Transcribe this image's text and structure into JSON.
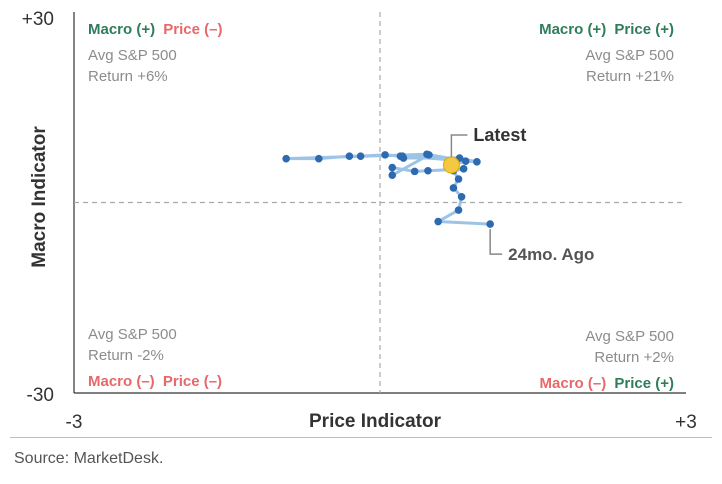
{
  "chart_data": {
    "type": "scatter",
    "xlabel": "Price Indicator",
    "ylabel": "Macro Indicator",
    "xlim": [
      -3,
      3
    ],
    "ylim": [
      -30,
      30
    ],
    "x_tick_labels": [
      "-3",
      "+3"
    ],
    "y_tick_labels": [
      "+30",
      "-30"
    ],
    "series": [
      {
        "points": [
          [
            1.08,
            -3.4
          ],
          [
            0.57,
            -3.0
          ],
          [
            0.77,
            -1.2
          ],
          [
            0.8,
            0.9
          ],
          [
            0.72,
            2.3
          ],
          [
            0.77,
            3.7
          ],
          [
            0.72,
            5.0
          ],
          [
            0.82,
            5.3
          ],
          [
            0.47,
            5.0
          ],
          [
            0.34,
            4.9
          ],
          [
            0.12,
            5.5
          ],
          [
            0.12,
            4.3
          ],
          [
            0.48,
            7.5
          ],
          [
            0.23,
            7.0
          ],
          [
            0.78,
            7.0
          ],
          [
            0.95,
            6.4
          ],
          [
            0.22,
            7.3
          ],
          [
            0.2,
            7.3
          ],
          [
            0.05,
            7.5
          ],
          [
            -0.19,
            7.3
          ],
          [
            -0.3,
            7.3
          ],
          [
            -0.6,
            6.9
          ],
          [
            -0.92,
            6.9
          ],
          [
            0.46,
            7.6
          ],
          [
            0.84,
            6.5
          ],
          [
            0.7,
            5.9
          ]
        ],
        "color": "#2d6ab0",
        "line_color": "#9dc3e6"
      }
    ],
    "latest_point": {
      "x": 0.7,
      "y": 5.9,
      "color": "#f5c842"
    },
    "annotations": [
      {
        "label": "Latest",
        "x": 0.7,
        "y": 5.9
      },
      {
        "label": "24mo. Ago",
        "x": 1.08,
        "y": -3.4
      }
    ],
    "quadrants": {
      "top_left": {
        "macro": "Macro (+)",
        "price": "Price (–)",
        "line1": "Avg S&P 500",
        "line2": "Return +6%"
      },
      "top_right": {
        "macro": "Macro (+)",
        "price": "Price (+)",
        "line1": "Avg S&P 500",
        "line2": "Return +21%"
      },
      "bottom_left": {
        "macro": "Macro (–)",
        "price": "Price (–)",
        "line1": "Avg S&P 500",
        "line2": "Return -2%"
      },
      "bottom_right": {
        "macro": "Macro (–)",
        "price": "Price (+)",
        "line1": "Avg S&P 500",
        "line2": "Return +2%"
      }
    },
    "colors": {
      "positive": "#2e7d5b",
      "negative": "#e8686a",
      "muted": "#8c8c8c",
      "axis": "#333333"
    }
  },
  "source": "Source: MarketDesk."
}
